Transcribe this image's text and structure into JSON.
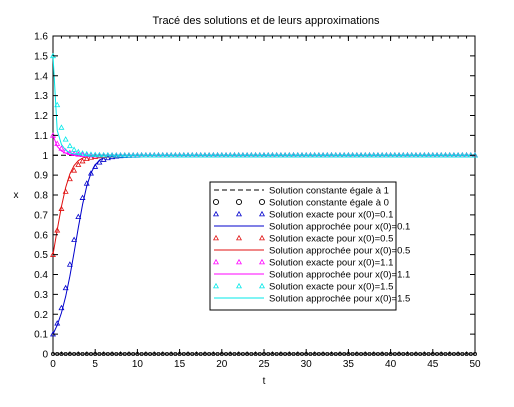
{
  "chart_data": {
    "type": "line",
    "title": "Tracé des solutions et de leurs approximations",
    "xlabel": "t",
    "ylabel": "x",
    "xlim": [
      0,
      50
    ],
    "ylim": [
      0,
      1.6
    ],
    "xticks": [
      0,
      5,
      10,
      15,
      20,
      25,
      30,
      35,
      40,
      45,
      50
    ],
    "yticks": [
      0,
      0.1,
      0.2,
      0.3,
      0.4,
      0.5,
      0.6,
      0.7,
      0.8,
      0.9,
      1,
      1.1,
      1.2,
      1.3,
      1.4,
      1.5,
      1.6
    ],
    "grid": false,
    "legend_position": "right-center",
    "marker_step": 0.5,
    "series": [
      {
        "name": "Solution constante égale à 1",
        "kind": "constant",
        "value": 1,
        "style": "dash",
        "color": "#000000"
      },
      {
        "name": "Solution constante égale à 0",
        "kind": "constant",
        "value": 0,
        "style": "circle",
        "color": "#000000"
      },
      {
        "name": "Solution exacte pour x(0)=0.1",
        "kind": "exact",
        "x0": 0.1,
        "style": "triangle",
        "color": "#0000cc"
      },
      {
        "name": "Solution approchée pour x(0)=0.1",
        "kind": "approx",
        "x0": 0.1,
        "style": "line",
        "color": "#0000cc"
      },
      {
        "name": "Solution exacte pour x(0)=0.5",
        "kind": "exact",
        "x0": 0.5,
        "style": "triangle",
        "color": "#e01010"
      },
      {
        "name": "Solution approchée pour x(0)=0.5",
        "kind": "approx",
        "x0": 0.5,
        "style": "line",
        "color": "#e01010"
      },
      {
        "name": "Solution exacte pour x(0)=1.1",
        "kind": "exact",
        "x0": 1.1,
        "style": "triangle",
        "color": "#ff00ff"
      },
      {
        "name": "Solution approchée pour x(0)=1.1",
        "kind": "approx",
        "x0": 1.1,
        "style": "line",
        "color": "#ff00ff"
      },
      {
        "name": "Solution exacte pour x(0)=1.5",
        "kind": "exact",
        "x0": 1.5,
        "style": "triangle",
        "color": "#00e8e8"
      },
      {
        "name": "Solution approchée pour x(0)=1.5",
        "kind": "approx",
        "x0": 1.5,
        "style": "line",
        "color": "#00e8e8"
      }
    ]
  }
}
